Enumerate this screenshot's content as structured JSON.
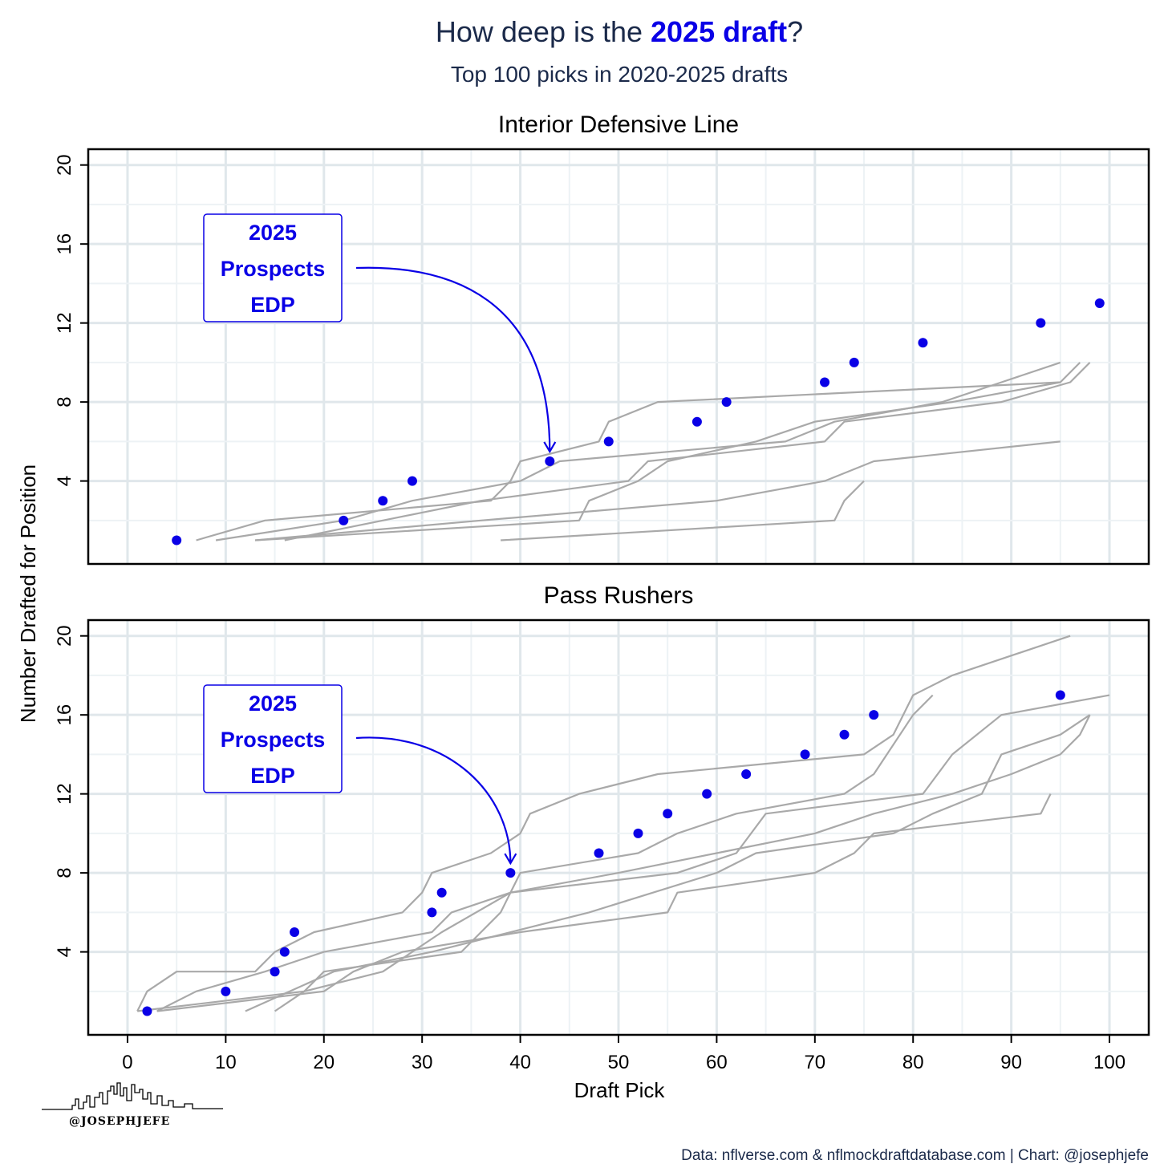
{
  "title": {
    "pre": "How deep is the ",
    "highlight": "2025 draft",
    "post": "?"
  },
  "subtitle": "Top 100 picks in 2020-2025 drafts",
  "caption": "Data: nflverse.com & nflmockdraftdatabase.com | Chart: @josephjefe",
  "logo_text": "@JOSEPHJEFE",
  "colors": {
    "prospects": "#0a00e6",
    "history": "#a9a9a9",
    "grid": "#e6edf1",
    "text": "#1b2a4a"
  },
  "chart_data": [
    {
      "type": "scatter",
      "title": "Interior Defensive Line",
      "xlabel": "Draft Pick",
      "ylabel": "Number Drafted for Position",
      "xlim": [
        -4,
        104
      ],
      "ylim": [
        -0.2,
        20.8
      ],
      "xticks": [
        0,
        10,
        20,
        30,
        40,
        50,
        60,
        70,
        80,
        90,
        100
      ],
      "yticks": [
        4,
        8,
        12,
        16,
        20
      ],
      "grid": true,
      "annotation": {
        "lines": [
          "2025",
          "Prospects",
          "EDP"
        ],
        "points_to": [
          43,
          5
        ]
      },
      "prospects": {
        "x": [
          5,
          22,
          26,
          29,
          43,
          49,
          58,
          61,
          71,
          74,
          81,
          93,
          99
        ],
        "y": [
          1,
          2,
          3,
          4,
          5,
          6,
          7,
          8,
          9,
          10,
          11,
          12,
          13
        ]
      },
      "history": [
        {
          "points": [
            [
              7,
              1
            ],
            [
              14,
              2
            ],
            [
              37,
              3
            ],
            [
              39,
              4
            ],
            [
              40,
              5
            ],
            [
              48,
              6
            ],
            [
              49,
              7
            ],
            [
              54,
              8
            ],
            [
              95,
              9
            ],
            [
              97,
              10
            ]
          ]
        },
        {
          "points": [
            [
              9,
              1
            ],
            [
              22,
              2
            ],
            [
              29,
              3
            ],
            [
              40,
              4
            ],
            [
              44,
              5
            ],
            [
              67,
              6
            ],
            [
              72,
              7
            ],
            [
              83,
              8
            ],
            [
              89,
              9
            ],
            [
              95,
              10
            ]
          ]
        },
        {
          "points": [
            [
              13,
              1
            ],
            [
              46,
              2
            ],
            [
              47,
              3
            ],
            [
              52,
              4
            ],
            [
              55,
              5
            ],
            [
              64,
              6
            ],
            [
              70,
              7
            ],
            [
              84,
              8
            ],
            [
              95,
              9
            ]
          ]
        },
        {
          "points": [
            [
              16,
              1
            ],
            [
              26,
              2
            ],
            [
              36,
              3
            ],
            [
              51,
              4
            ],
            [
              53,
              5
            ],
            [
              71,
              6
            ],
            [
              73,
              7
            ],
            [
              89,
              8
            ],
            [
              96,
              9
            ],
            [
              98,
              10
            ]
          ]
        },
        {
          "points": [
            [
              38,
              1
            ],
            [
              72,
              2
            ],
            [
              73,
              3
            ],
            [
              75,
              4
            ]
          ]
        },
        {
          "points": [
            [
              13,
              1
            ],
            [
              36,
              2
            ],
            [
              60,
              3
            ],
            [
              71,
              4
            ],
            [
              76,
              5
            ],
            [
              95,
              6
            ]
          ]
        }
      ]
    },
    {
      "type": "scatter",
      "title": "Pass Rushers",
      "xlabel": "Draft Pick",
      "ylabel": "Number Drafted for Position",
      "xlim": [
        -4,
        104
      ],
      "ylim": [
        -0.2,
        20.8
      ],
      "xticks": [
        0,
        10,
        20,
        30,
        40,
        50,
        60,
        70,
        80,
        90,
        100
      ],
      "yticks": [
        4,
        8,
        12,
        16,
        20
      ],
      "grid": true,
      "annotation": {
        "lines": [
          "2025",
          "Prospects",
          "EDP"
        ],
        "points_to": [
          39,
          8
        ]
      },
      "prospects": {
        "x": [
          2,
          10,
          15,
          16,
          17,
          31,
          32,
          39,
          48,
          52,
          55,
          59,
          63,
          69,
          73,
          76,
          95
        ],
        "y": [
          1,
          2,
          3,
          4,
          5,
          6,
          7,
          8,
          9,
          10,
          11,
          12,
          13,
          14,
          15,
          16,
          17
        ]
      },
      "history": [
        {
          "points": [
            [
              1,
              1
            ],
            [
              2,
              2
            ],
            [
              5,
              3
            ],
            [
              13,
              3
            ],
            [
              15,
              4
            ],
            [
              19,
              5
            ],
            [
              28,
              6
            ],
            [
              30,
              7
            ],
            [
              31,
              8
            ],
            [
              37,
              9
            ],
            [
              40,
              10
            ],
            [
              41,
              11
            ],
            [
              46,
              12
            ],
            [
              54,
              13
            ],
            [
              75,
              14
            ],
            [
              78,
              15
            ],
            [
              80,
              17
            ],
            [
              84,
              18
            ],
            [
              96,
              20
            ]
          ]
        },
        {
          "points": [
            [
              3,
              1
            ],
            [
              7,
              2
            ],
            [
              14,
              3
            ],
            [
              20,
              4
            ],
            [
              31,
              5
            ],
            [
              33,
              6
            ],
            [
              39,
              7
            ],
            [
              50,
              8
            ],
            [
              60,
              9
            ],
            [
              70,
              10
            ],
            [
              76,
              11
            ],
            [
              84,
              12
            ],
            [
              90,
              13
            ],
            [
              95,
              14
            ],
            [
              97,
              15
            ],
            [
              98,
              16
            ]
          ]
        },
        {
          "points": [
            [
              1,
              1
            ],
            [
              18,
              2
            ],
            [
              20,
              3
            ],
            [
              34,
              4
            ],
            [
              38,
              6
            ],
            [
              40,
              8
            ],
            [
              52,
              9
            ],
            [
              56,
              10
            ],
            [
              62,
              11
            ],
            [
              73,
              12
            ],
            [
              76,
              13
            ],
            [
              80,
              16
            ],
            [
              82,
              17
            ]
          ]
        },
        {
          "points": [
            [
              12,
              1
            ],
            [
              21,
              3
            ],
            [
              31,
              4
            ],
            [
              47,
              6
            ],
            [
              60,
              8
            ],
            [
              64,
              9
            ],
            [
              78,
              10
            ],
            [
              82,
              11
            ],
            [
              87,
              12
            ],
            [
              89,
              14
            ],
            [
              95,
              15
            ],
            [
              98,
              16
            ]
          ]
        },
        {
          "points": [
            [
              15,
              1
            ],
            [
              18,
              2
            ],
            [
              26,
              3
            ],
            [
              32,
              5
            ],
            [
              39,
              7
            ],
            [
              56,
              8
            ],
            [
              62,
              9
            ],
            [
              65,
              11
            ],
            [
              81,
              12
            ],
            [
              84,
              14
            ],
            [
              89,
              16
            ],
            [
              100,
              17
            ]
          ]
        },
        {
          "points": [
            [
              3,
              1
            ],
            [
              20,
              2
            ],
            [
              23,
              3
            ],
            [
              28,
              4
            ],
            [
              40,
              5
            ],
            [
              55,
              6
            ],
            [
              56,
              7
            ],
            [
              70,
              8
            ],
            [
              74,
              9
            ],
            [
              76,
              10
            ],
            [
              93,
              11
            ],
            [
              94,
              12
            ]
          ]
        }
      ]
    }
  ]
}
